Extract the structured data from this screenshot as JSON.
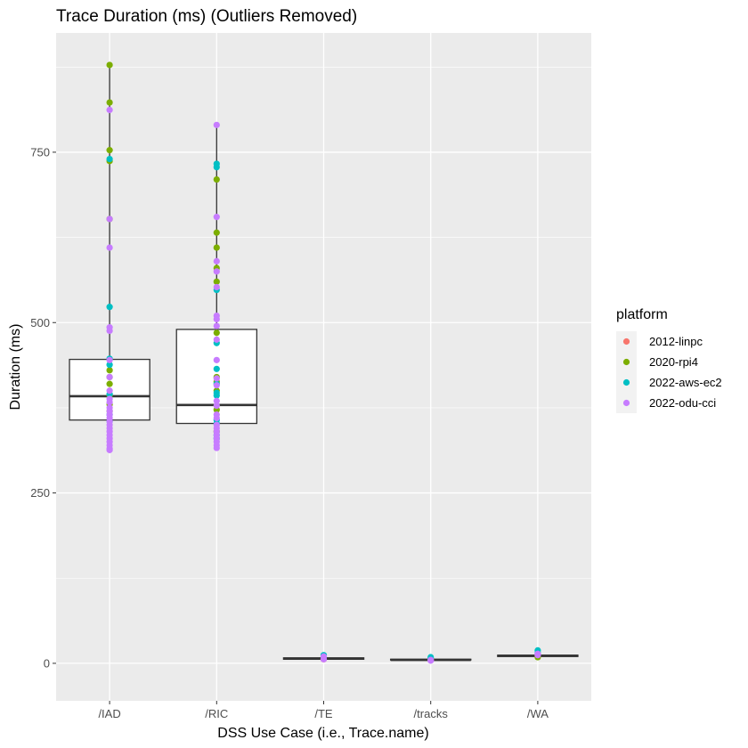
{
  "chart_data": {
    "type": "boxplot",
    "title": "Trace Duration (ms) (Outliers Removed)",
    "xlabel": "DSS Use Case (i.e., Trace.name)",
    "ylabel": "Duration (ms)",
    "ylim": [
      -55,
      925
    ],
    "yticks": [
      0,
      250,
      500,
      750
    ],
    "grid": true,
    "legend_position": "right",
    "legend_title": "platform",
    "categories": [
      "/IAD",
      "/RIC",
      "/TE",
      "/tracks",
      "/WA"
    ],
    "platforms": [
      {
        "name": "2012-linpc",
        "color": "#F8766D"
      },
      {
        "name": "2020-rpi4",
        "color": "#7CAE00"
      },
      {
        "name": "2022-aws-ec2",
        "color": "#00BFC4"
      },
      {
        "name": "2022-odu-cci",
        "color": "#C77CFF"
      }
    ],
    "boxes": [
      {
        "category": "/IAD",
        "whisker_low": 313,
        "q1": 357,
        "median": 392,
        "q3": 446,
        "whisker_high": 878
      },
      {
        "category": "/RIC",
        "whisker_low": 316,
        "q1": 352,
        "median": 379,
        "q3": 490,
        "whisker_high": 790
      },
      {
        "category": "/TE",
        "whisker_low": 5,
        "q1": 6,
        "median": 7,
        "q3": 8,
        "whisker_high": 12
      },
      {
        "category": "/tracks",
        "whisker_low": 4,
        "q1": 5,
        "median": 5,
        "q3": 6,
        "whisker_high": 9
      },
      {
        "category": "/WA",
        "whisker_low": 9,
        "q1": 10,
        "median": 11,
        "q3": 12,
        "whisker_high": 19
      }
    ],
    "points": {
      "/IAD": {
        "2020-rpi4": [
          878,
          823,
          753,
          737,
          652,
          430,
          420,
          410,
          393,
          380,
          370
        ],
        "2022-aws-ec2": [
          740,
          523,
          447,
          438,
          395,
          365,
          355
        ],
        "2022-odu-cci": [
          812,
          652,
          610,
          493,
          488,
          445,
          420,
          400,
          388,
          383,
          375,
          370,
          365,
          360,
          355,
          350,
          345,
          340,
          335,
          330,
          325,
          320,
          315,
          313
        ]
      },
      "/RIC": {
        "2020-rpi4": [
          710,
          632,
          610,
          580,
          560,
          485,
          420,
          413,
          400,
          372,
          340
        ],
        "2022-aws-ec2": [
          733,
          728,
          548,
          470,
          432,
          410,
          397,
          393,
          357,
          352,
          335,
          330
        ],
        "2022-odu-cci": [
          790,
          655,
          590,
          575,
          552,
          510,
          505,
          495,
          475,
          445,
          418,
          408,
          385,
          378,
          365,
          360,
          350,
          345,
          340,
          335,
          330,
          325,
          320,
          316
        ]
      },
      "/TE": {
        "2012-linpc": [
          6
        ],
        "2020-rpi4": [
          7
        ],
        "2022-aws-ec2": [
          12,
          9
        ],
        "2022-odu-cci": [
          10,
          6
        ]
      },
      "/tracks": {
        "2012-linpc": [
          5
        ],
        "2020-rpi4": [
          6
        ],
        "2022-aws-ec2": [
          9,
          7
        ],
        "2022-odu-cci": [
          5,
          4
        ]
      },
      "/WA": {
        "2012-linpc": [
          10
        ],
        "2020-rpi4": [
          9,
          11
        ],
        "2022-aws-ec2": [
          19,
          15
        ],
        "2022-odu-cci": [
          14,
          12
        ]
      }
    }
  }
}
